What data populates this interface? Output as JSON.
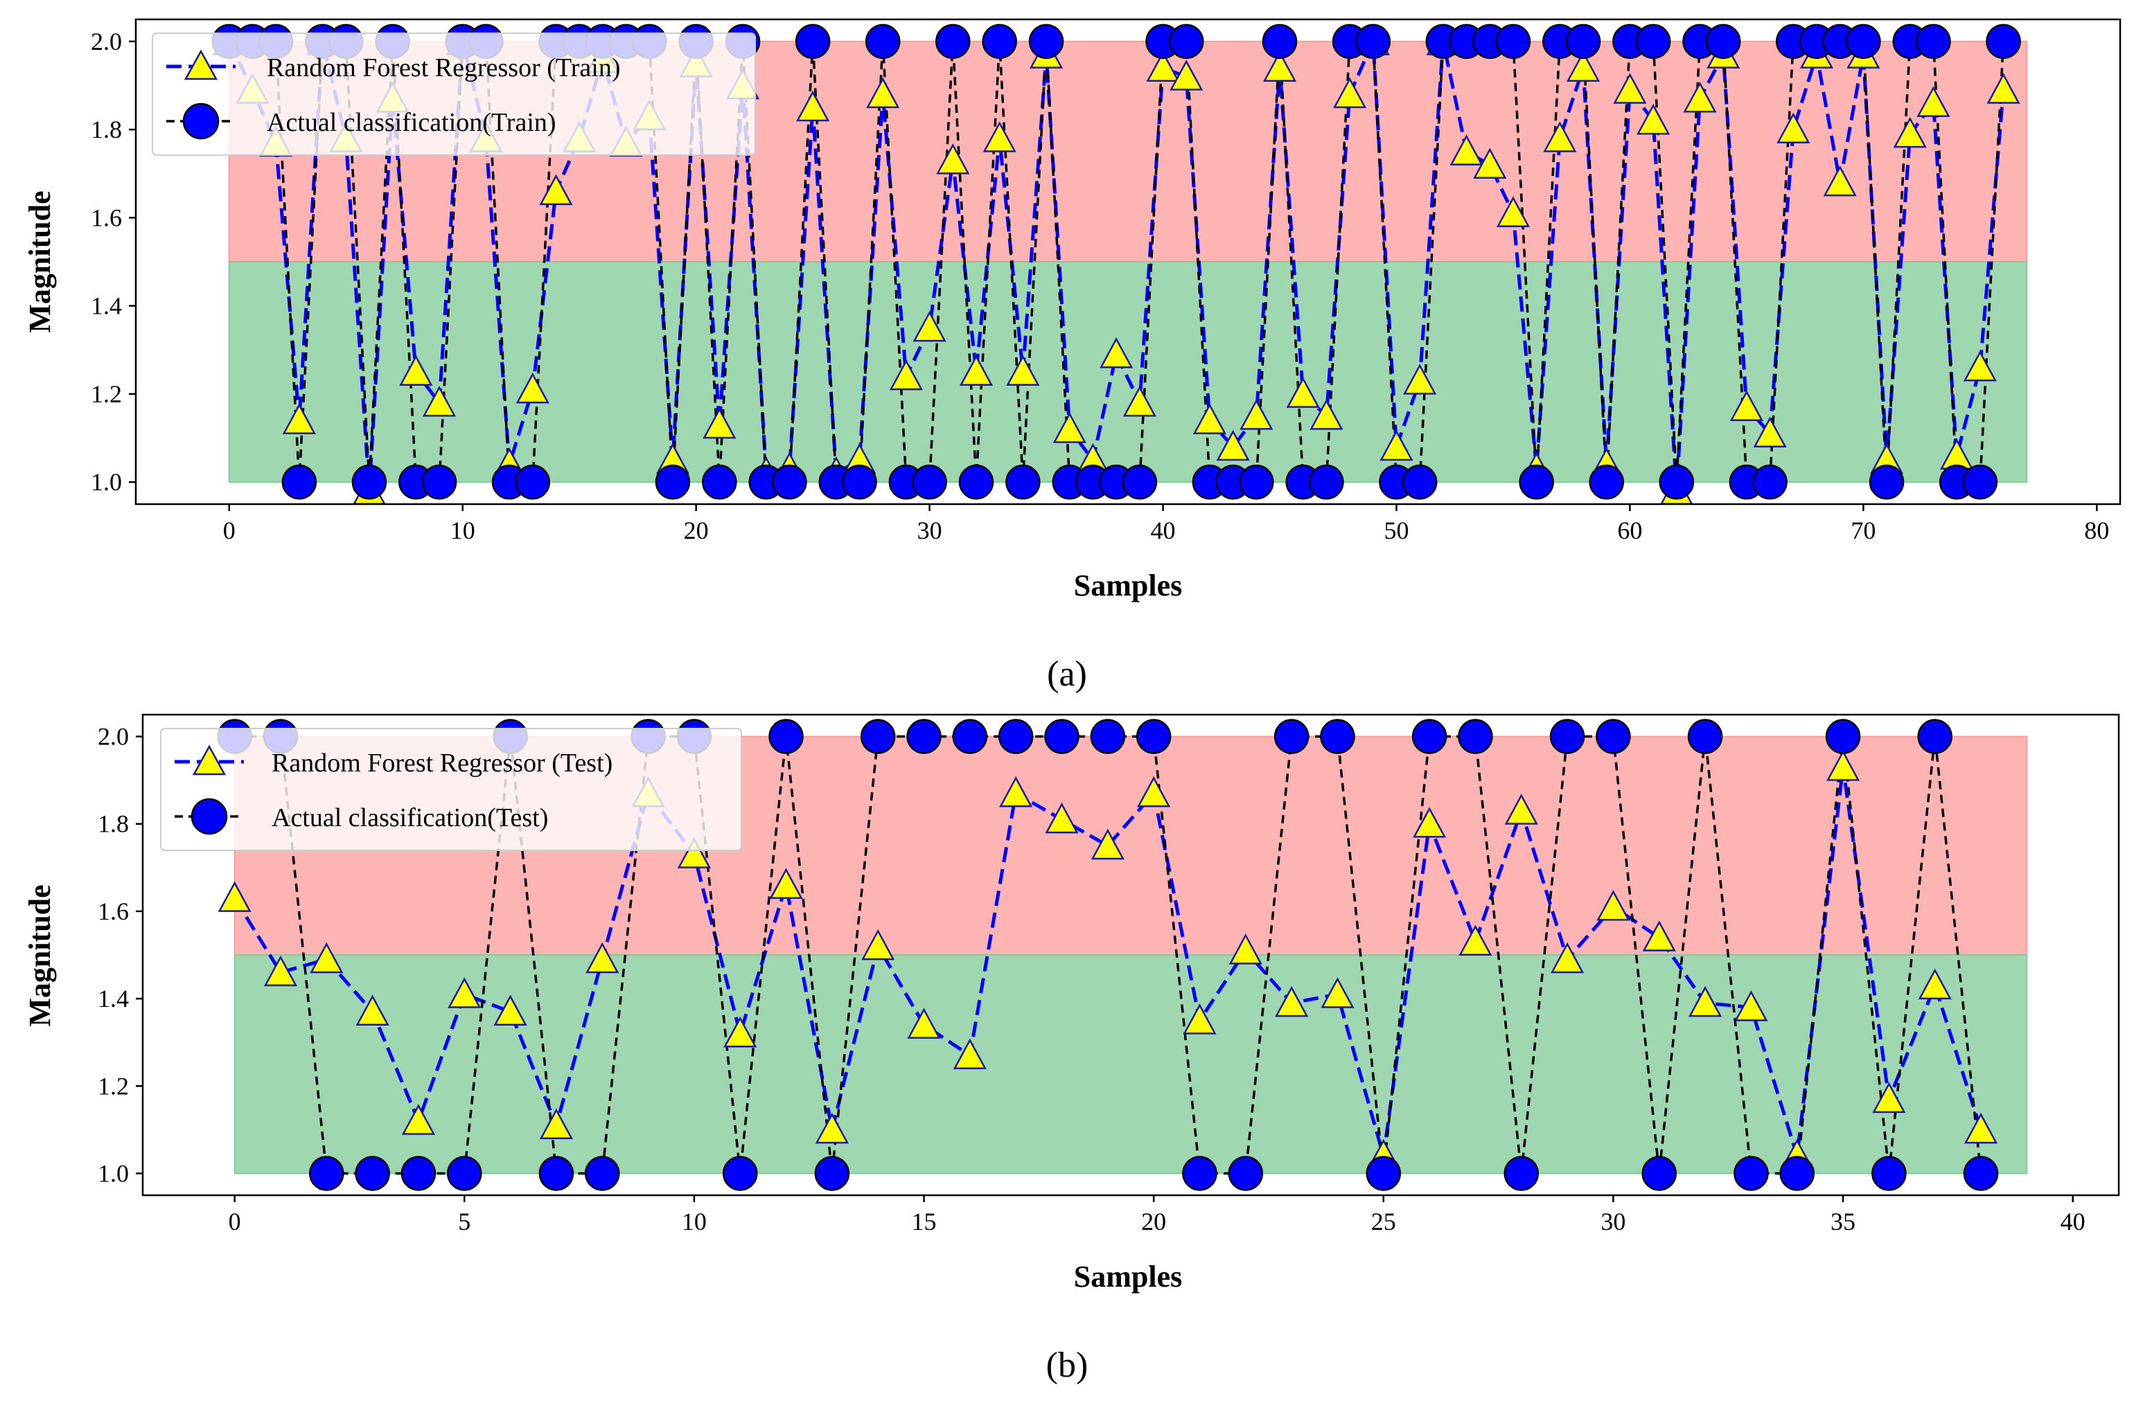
{
  "colors": {
    "predicted_line": "#0000ff",
    "predicted_marker_fill": "#ffff00",
    "predicted_marker_edge": "#1a1aa0",
    "actual_line": "#000000",
    "actual_marker_fill": "#0000ff",
    "actual_marker_edge": "#000000",
    "band_high": "#ff9b9b",
    "band_low": "#7fcb96"
  },
  "chart_data": [
    {
      "type": "line",
      "panel_label": "a",
      "caption": "(a)",
      "title": "",
      "xlabel": "Samples",
      "ylabel": "Magnitude",
      "xlim": [
        -4,
        81
      ],
      "ylim": [
        0.95,
        2.05
      ],
      "xticks": [
        0,
        10,
        20,
        30,
        40,
        50,
        60,
        70,
        80
      ],
      "xtick_labels": [
        "0",
        "10",
        "20",
        "30",
        "40",
        "50",
        "60",
        "70",
        "80"
      ],
      "yticks": [
        1.0,
        1.2,
        1.4,
        1.6,
        1.8,
        2.0
      ],
      "ytick_labels": [
        "1.0",
        "1.2",
        "1.4",
        "1.6",
        "1.8",
        "2.0"
      ],
      "bands": [
        {
          "name": "class-2 region",
          "x_range": [
            0,
            77
          ],
          "y_range": [
            1.5,
            2.0
          ],
          "color": "band_high"
        },
        {
          "name": "class-1 region",
          "x_range": [
            0,
            77
          ],
          "y_range": [
            1.0,
            1.5
          ],
          "color": "band_low"
        }
      ],
      "legend_position": "top-left",
      "series": [
        {
          "name": "Random Forest Regressor (Train)",
          "style": "predicted",
          "x": [
            0,
            1,
            2,
            3,
            4,
            5,
            6,
            7,
            8,
            9,
            10,
            11,
            12,
            13,
            14,
            15,
            16,
            17,
            18,
            19,
            20,
            21,
            22,
            23,
            24,
            25,
            26,
            27,
            28,
            29,
            30,
            31,
            32,
            33,
            34,
            35,
            36,
            37,
            38,
            39,
            40,
            41,
            42,
            43,
            44,
            45,
            46,
            47,
            48,
            49,
            50,
            51,
            52,
            53,
            54,
            55,
            56,
            57,
            58,
            59,
            60,
            61,
            62,
            63,
            64,
            65,
            66,
            67,
            68,
            69,
            70,
            71,
            72,
            73,
            74,
            75,
            76
          ],
          "values": [
            2.0,
            1.89,
            1.77,
            1.14,
            2.0,
            1.78,
            0.98,
            1.87,
            1.25,
            1.18,
            2.0,
            1.78,
            1.04,
            1.21,
            1.66,
            1.78,
            1.96,
            1.77,
            1.83,
            1.05,
            1.95,
            1.13,
            1.9,
            1.02,
            1.03,
            1.85,
            1.02,
            1.05,
            1.88,
            1.24,
            1.35,
            1.73,
            1.25,
            1.78,
            1.25,
            1.97,
            1.12,
            1.05,
            1.29,
            1.18,
            1.94,
            1.92,
            1.14,
            1.08,
            1.15,
            1.94,
            1.2,
            1.15,
            1.88,
            2.0,
            1.08,
            1.23,
            2.0,
            1.75,
            1.72,
            1.61,
            1.03,
            1.78,
            1.94,
            1.04,
            1.89,
            1.82,
            0.98,
            1.87,
            1.97,
            1.17,
            1.11,
            1.8,
            1.97,
            1.68,
            1.97,
            1.05,
            1.79,
            1.86,
            1.06,
            1.26,
            1.89
          ]
        },
        {
          "name": "Actual classification(Train)",
          "style": "actual",
          "x": [
            0,
            1,
            2,
            3,
            4,
            5,
            6,
            7,
            8,
            9,
            10,
            11,
            12,
            13,
            14,
            15,
            16,
            17,
            18,
            19,
            20,
            21,
            22,
            23,
            24,
            25,
            26,
            27,
            28,
            29,
            30,
            31,
            32,
            33,
            34,
            35,
            36,
            37,
            38,
            39,
            40,
            41,
            42,
            43,
            44,
            45,
            46,
            47,
            48,
            49,
            50,
            51,
            52,
            53,
            54,
            55,
            56,
            57,
            58,
            59,
            60,
            61,
            62,
            63,
            64,
            65,
            66,
            67,
            68,
            69,
            70,
            71,
            72,
            73,
            74,
            75,
            76
          ],
          "values": [
            2,
            2,
            2,
            1,
            2,
            2,
            1,
            2,
            1,
            1,
            2,
            2,
            1,
            1,
            2,
            2,
            2,
            2,
            2,
            1,
            2,
            1,
            2,
            1,
            1,
            2,
            1,
            1,
            2,
            1,
            1,
            2,
            1,
            2,
            1,
            2,
            1,
            1,
            1,
            1,
            2,
            2,
            1,
            1,
            1,
            2,
            1,
            1,
            2,
            2,
            1,
            1,
            2,
            2,
            2,
            2,
            1,
            2,
            2,
            1,
            2,
            2,
            1,
            2,
            2,
            1,
            1,
            2,
            2,
            2,
            2,
            1,
            2,
            2,
            1,
            1,
            2
          ]
        }
      ]
    },
    {
      "type": "line",
      "panel_label": "b",
      "caption": "(b)",
      "title": "",
      "xlabel": "Samples",
      "ylabel": "Magnitude",
      "xlim": [
        -2,
        41
      ],
      "ylim": [
        0.95,
        2.05
      ],
      "xticks": [
        0,
        5,
        10,
        15,
        20,
        25,
        30,
        35,
        40
      ],
      "xtick_labels": [
        "0",
        "5",
        "10",
        "15",
        "20",
        "25",
        "30",
        "35",
        "40"
      ],
      "yticks": [
        1.0,
        1.2,
        1.4,
        1.6,
        1.8,
        2.0
      ],
      "ytick_labels": [
        "1.0",
        "1.2",
        "1.4",
        "1.6",
        "1.8",
        "2.0"
      ],
      "bands": [
        {
          "name": "class-2 region",
          "x_range": [
            0,
            39
          ],
          "y_range": [
            1.5,
            2.0
          ],
          "color": "band_high"
        },
        {
          "name": "class-1 region",
          "x_range": [
            0,
            39
          ],
          "y_range": [
            1.0,
            1.5
          ],
          "color": "band_low"
        }
      ],
      "legend_position": "top-left",
      "series": [
        {
          "name": "Random Forest Regressor (Test)",
          "style": "predicted",
          "x": [
            0,
            1,
            2,
            3,
            4,
            5,
            6,
            7,
            8,
            9,
            10,
            11,
            12,
            13,
            14,
            15,
            16,
            17,
            18,
            19,
            20,
            21,
            22,
            23,
            24,
            25,
            26,
            27,
            28,
            29,
            30,
            31,
            32,
            33,
            34,
            35,
            36,
            37,
            38
          ],
          "values": [
            1.63,
            1.46,
            1.49,
            1.37,
            1.12,
            1.41,
            1.37,
            1.11,
            1.49,
            1.87,
            1.73,
            1.32,
            1.66,
            1.1,
            1.52,
            1.34,
            1.27,
            1.87,
            1.81,
            1.75,
            1.87,
            1.35,
            1.51,
            1.39,
            1.41,
            1.04,
            1.8,
            1.53,
            1.83,
            1.49,
            1.61,
            1.54,
            1.39,
            1.38,
            1.04,
            1.93,
            1.17,
            1.43,
            1.1
          ]
        },
        {
          "name": "Actual classification(Test)",
          "style": "actual",
          "x": [
            0,
            1,
            2,
            3,
            4,
            5,
            6,
            7,
            8,
            9,
            10,
            11,
            12,
            13,
            14,
            15,
            16,
            17,
            18,
            19,
            20,
            21,
            22,
            23,
            24,
            25,
            26,
            27,
            28,
            29,
            30,
            31,
            32,
            33,
            34,
            35,
            36,
            37,
            38
          ],
          "values": [
            2,
            2,
            1,
            1,
            1,
            1,
            2,
            1,
            1,
            2,
            2,
            1,
            2,
            1,
            2,
            2,
            2,
            2,
            2,
            2,
            2,
            1,
            1,
            2,
            2,
            1,
            2,
            2,
            1,
            2,
            2,
            1,
            2,
            1,
            1,
            2,
            1,
            2,
            1
          ]
        }
      ]
    }
  ]
}
